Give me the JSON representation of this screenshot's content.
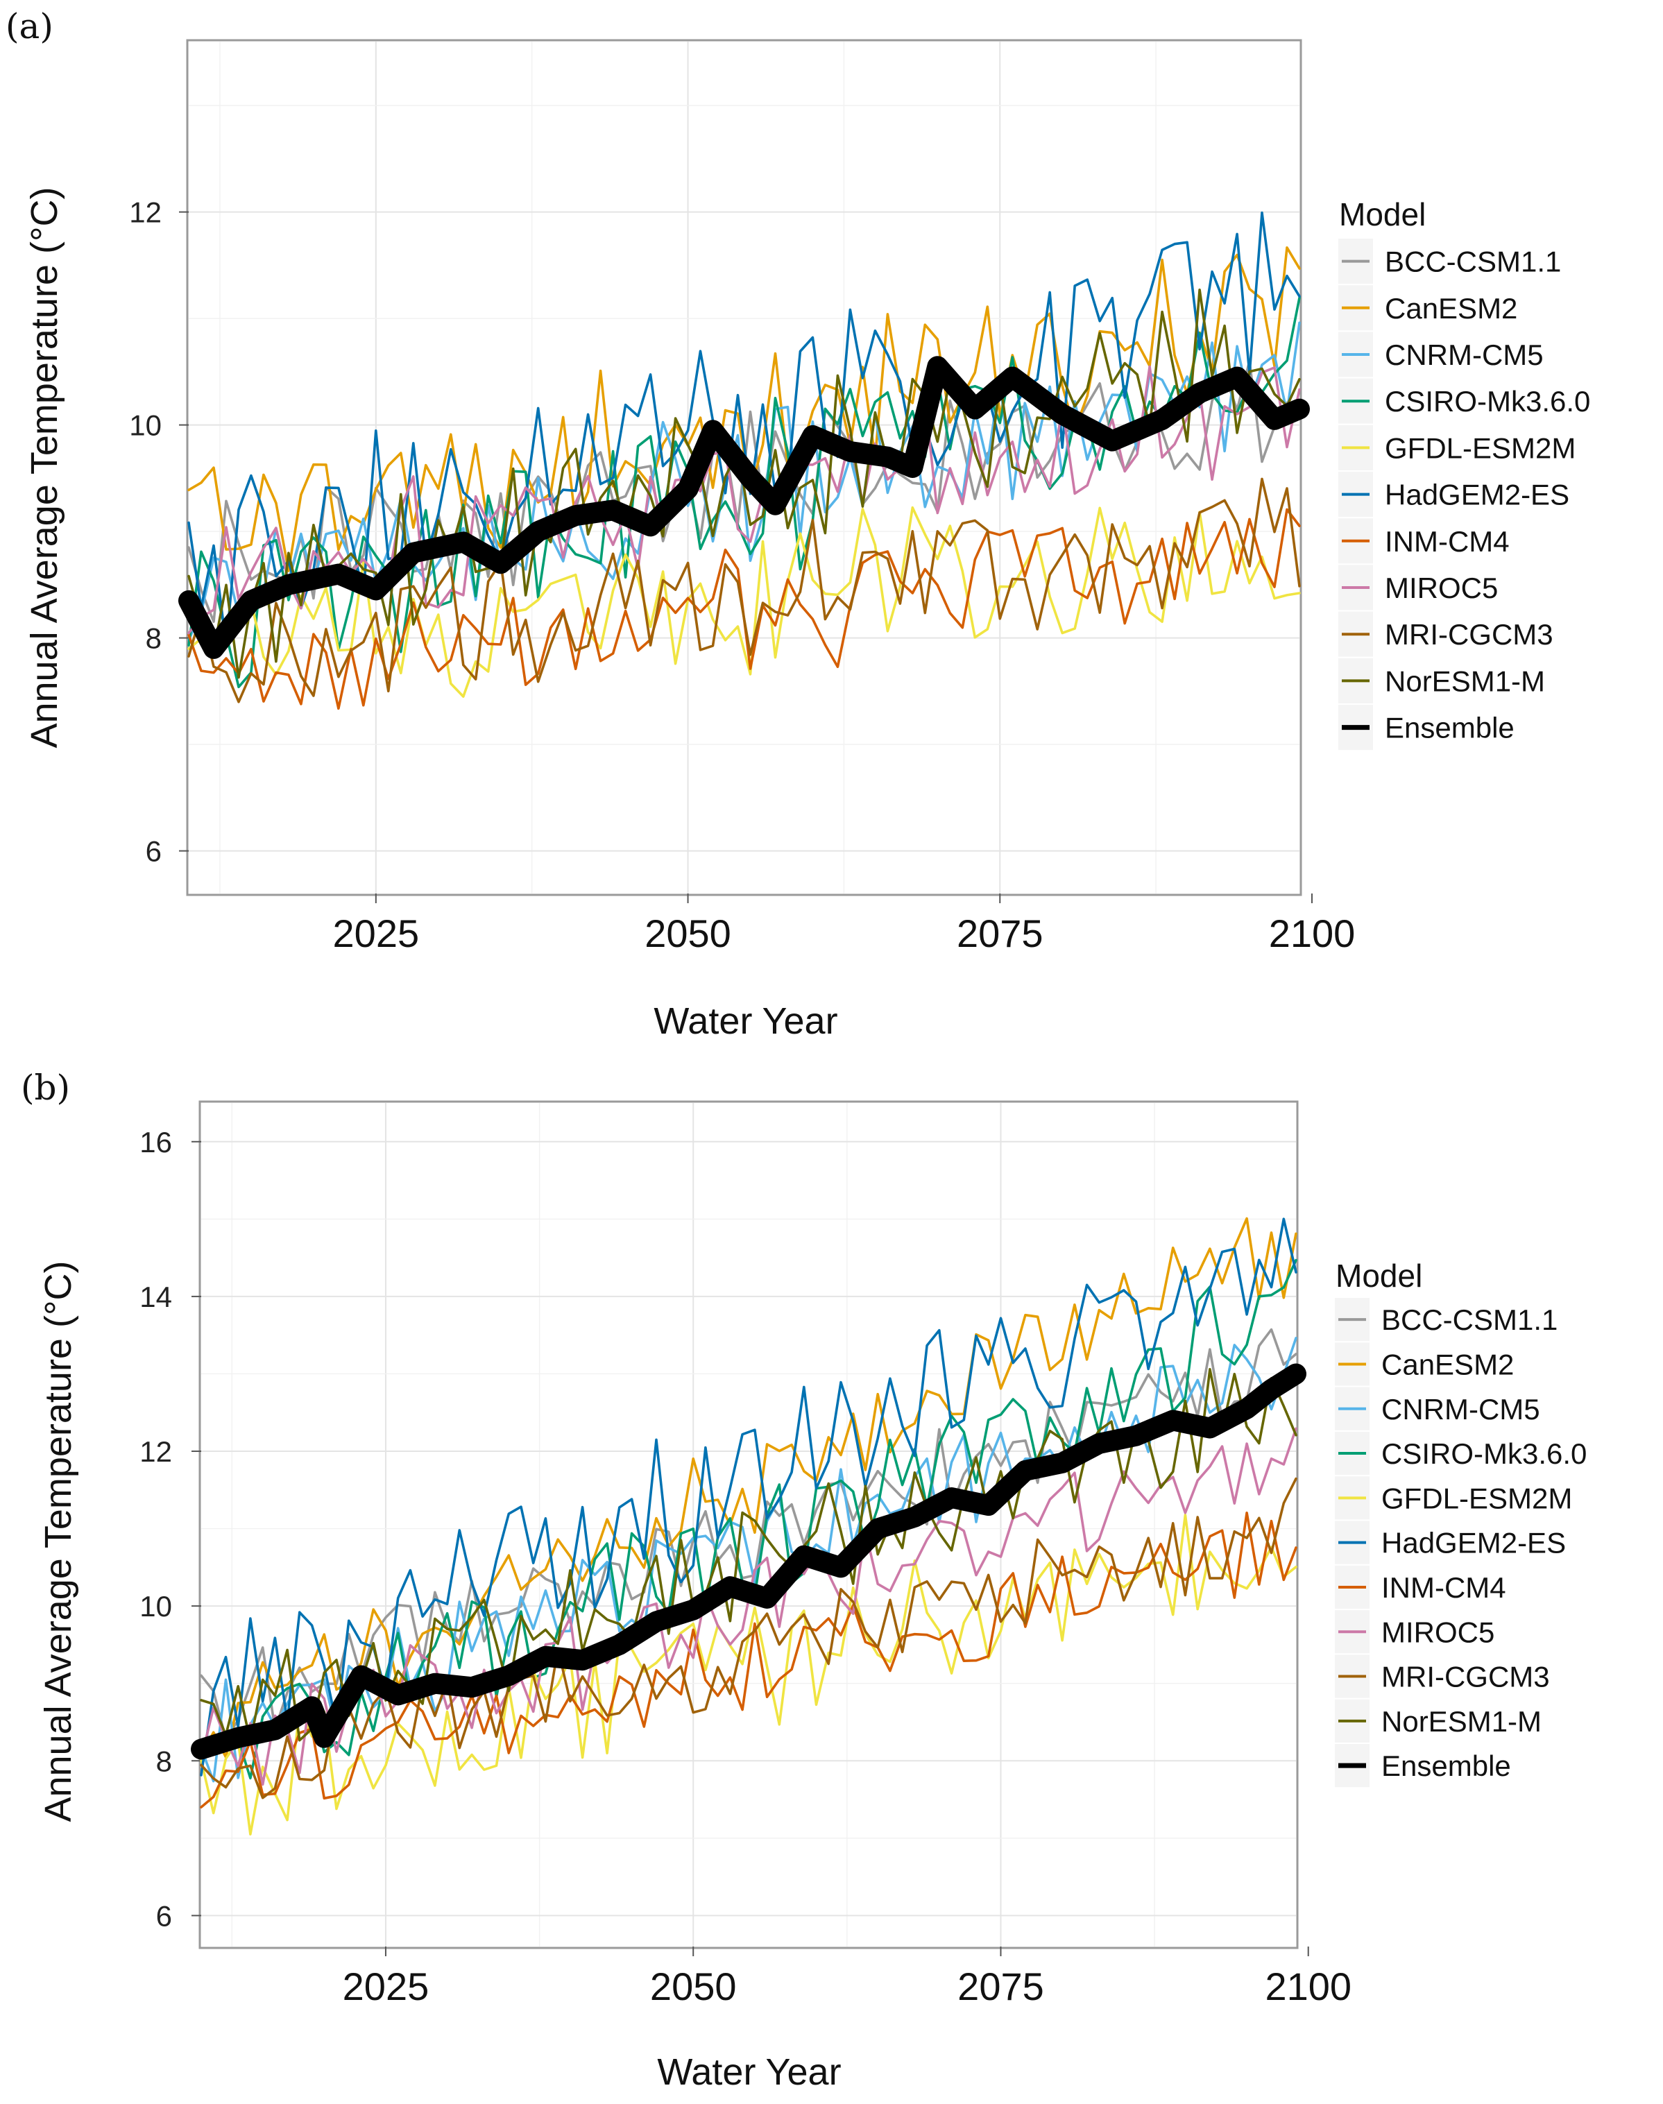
{
  "chart_data": [
    {
      "panel_label": "(a)",
      "type": "line",
      "title": "",
      "xlabel": "Water Year",
      "ylabel": "Annual Average Temperature (°C)",
      "xlim": [
        2010,
        2099
      ],
      "ylim": [
        5.6,
        13.6
      ],
      "xticks": [
        2025,
        2050,
        2075,
        2100
      ],
      "yticks": [
        6,
        8,
        10,
        12
      ],
      "grid": true,
      "legend_title": "Model",
      "legend_position": "right",
      "series": [
        {
          "name": "BCC-CSM1.1",
          "color": "#999999",
          "start": 8.7,
          "end": 10.2,
          "amp": 0.55,
          "seed": 1
        },
        {
          "name": "CanESM2",
          "color": "#E69F00",
          "start": 8.9,
          "end": 11.2,
          "amp": 0.65,
          "seed": 2
        },
        {
          "name": "CNRM-CM5",
          "color": "#56B4E9",
          "start": 8.5,
          "end": 10.4,
          "amp": 0.6,
          "seed": 3
        },
        {
          "name": "CSIRO-Mk3.6.0",
          "color": "#009E73",
          "start": 8.2,
          "end": 10.6,
          "amp": 0.7,
          "seed": 4
        },
        {
          "name": "GFDL-ESM2M",
          "color": "#F0E442",
          "start": 7.9,
          "end": 8.8,
          "amp": 0.6,
          "seed": 5
        },
        {
          "name": "HadGEM2-ES",
          "color": "#0072B2",
          "start": 8.7,
          "end": 11.3,
          "amp": 0.8,
          "seed": 6
        },
        {
          "name": "INM-CM4",
          "color": "#D55E00",
          "start": 7.6,
          "end": 8.9,
          "amp": 0.5,
          "seed": 7
        },
        {
          "name": "MIROC5",
          "color": "#CC79A7",
          "start": 8.5,
          "end": 10.2,
          "amp": 0.6,
          "seed": 8
        },
        {
          "name": "MRI-CGCM3",
          "color": "#A0620A",
          "start": 7.8,
          "end": 9.0,
          "amp": 0.55,
          "seed": 9
        },
        {
          "name": "NorESM1-M",
          "color": "#666600",
          "start": 8.3,
          "end": 10.7,
          "amp": 0.65,
          "seed": 10
        },
        {
          "name": "Ensemble",
          "color": "#000000",
          "thick": true,
          "x": [
            2010,
            2012,
            2015,
            2018,
            2022,
            2025,
            2028,
            2032,
            2035,
            2038,
            2041,
            2044,
            2047,
            2050,
            2052,
            2055,
            2057,
            2060,
            2063,
            2066,
            2068,
            2070,
            2073,
            2076,
            2080,
            2084,
            2088,
            2091,
            2094,
            2097,
            2099
          ],
          "values": [
            8.35,
            7.9,
            8.35,
            8.5,
            8.6,
            8.45,
            8.8,
            8.9,
            8.7,
            9.0,
            9.15,
            9.2,
            9.05,
            9.4,
            9.95,
            9.5,
            9.25,
            9.9,
            9.75,
            9.7,
            9.6,
            10.55,
            10.15,
            10.45,
            10.1,
            9.85,
            10.05,
            10.3,
            10.45,
            10.05,
            10.15
          ]
        }
      ]
    },
    {
      "panel_label": "(b)",
      "type": "line",
      "title": "",
      "xlabel": "Water Year",
      "ylabel": "Annual Average Temperature (°C)",
      "xlim": [
        2010,
        2099
      ],
      "ylim": [
        5.6,
        16.5
      ],
      "xticks": [
        2025,
        2050,
        2075,
        2100
      ],
      "yticks": [
        6,
        8,
        10,
        12,
        14,
        16
      ],
      "grid": true,
      "legend_title": "Model",
      "legend_position": "right",
      "series": [
        {
          "name": "BCC-CSM1.1",
          "color": "#999999",
          "start": 8.6,
          "end": 13.2,
          "amp": 0.55,
          "seed": 11
        },
        {
          "name": "CanESM2",
          "color": "#E69F00",
          "start": 8.5,
          "end": 14.8,
          "amp": 0.6,
          "seed": 12
        },
        {
          "name": "CNRM-CM5",
          "color": "#56B4E9",
          "start": 8.3,
          "end": 13.2,
          "amp": 0.6,
          "seed": 13
        },
        {
          "name": "CSIRO-Mk3.6.0",
          "color": "#009E73",
          "start": 7.9,
          "end": 13.8,
          "amp": 0.7,
          "seed": 14
        },
        {
          "name": "GFDL-ESM2M",
          "color": "#F0E442",
          "start": 7.6,
          "end": 10.9,
          "amp": 0.75,
          "seed": 15
        },
        {
          "name": "HadGEM2-ES",
          "color": "#0072B2",
          "start": 8.6,
          "end": 14.8,
          "amp": 0.8,
          "seed": 16
        },
        {
          "name": "INM-CM4",
          "color": "#D55E00",
          "start": 7.7,
          "end": 10.8,
          "amp": 0.5,
          "seed": 17
        },
        {
          "name": "MIROC5",
          "color": "#CC79A7",
          "start": 8.1,
          "end": 11.9,
          "amp": 0.6,
          "seed": 18
        },
        {
          "name": "MRI-CGCM3",
          "color": "#A0620A",
          "start": 7.8,
          "end": 11.0,
          "amp": 0.55,
          "seed": 19
        },
        {
          "name": "NorESM1-M",
          "color": "#666600",
          "start": 8.3,
          "end": 12.8,
          "amp": 0.65,
          "seed": 20
        },
        {
          "name": "Ensemble",
          "color": "#000000",
          "thick": true,
          "x": [
            2010,
            2013,
            2016,
            2019,
            2020,
            2023,
            2026,
            2029,
            2032,
            2035,
            2038,
            2041,
            2044,
            2047,
            2050,
            2053,
            2056,
            2059,
            2062,
            2065,
            2068,
            2071,
            2074,
            2077,
            2080,
            2083,
            2086,
            2089,
            2092,
            2095,
            2097,
            2099
          ],
          "values": [
            8.15,
            8.3,
            8.4,
            8.7,
            8.3,
            9.1,
            8.85,
            9.0,
            8.95,
            9.1,
            9.35,
            9.3,
            9.5,
            9.8,
            9.95,
            10.25,
            10.1,
            10.65,
            10.5,
            11.0,
            11.15,
            11.4,
            11.3,
            11.75,
            11.85,
            12.1,
            12.2,
            12.4,
            12.3,
            12.55,
            12.8,
            13.0
          ]
        }
      ]
    }
  ]
}
